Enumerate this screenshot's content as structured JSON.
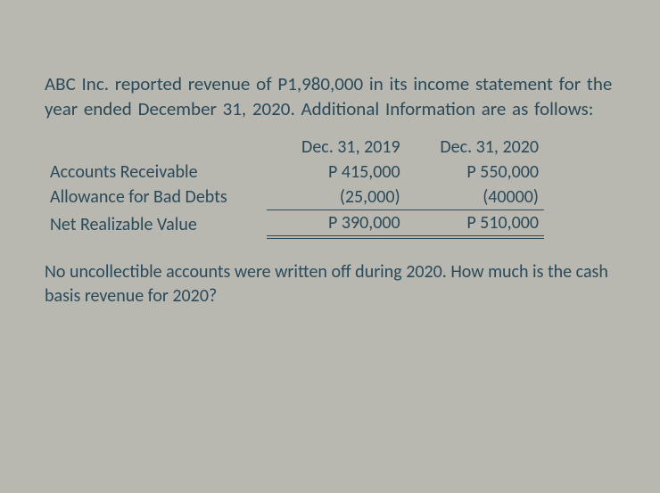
{
  "intro": {
    "line1_part1": "ABC Inc. reported revenue of ",
    "amount": "P1,980,000",
    "line1_part2": " in its income statement for the year ended December 31, 2020. Additional Information are as follows:"
  },
  "table": {
    "headers": {
      "col1": "Dec. 31, 2019",
      "col2": "Dec. 31, 2020"
    },
    "rows": [
      {
        "label": "Accounts Receivable",
        "v2019": "P 415,000",
        "v2020": "P 550,000",
        "style": "none"
      },
      {
        "label": "Allowance for Bad Debts",
        "v2019": "(25,000)",
        "v2020": "(40000)",
        "style": "single"
      },
      {
        "label": "Net Realizable Value",
        "v2019": "P 390,000",
        "v2020": "P 510,000",
        "style": "double"
      }
    ]
  },
  "question": "No uncollectible accounts were written off during 2020. How much is the cash basis revenue for 2020?",
  "colors": {
    "text": "#2a4a5a",
    "background": "#b8b8b0"
  },
  "typography": {
    "body_fontsize": 21,
    "table_fontsize": 20,
    "font_family": "Calibri"
  }
}
